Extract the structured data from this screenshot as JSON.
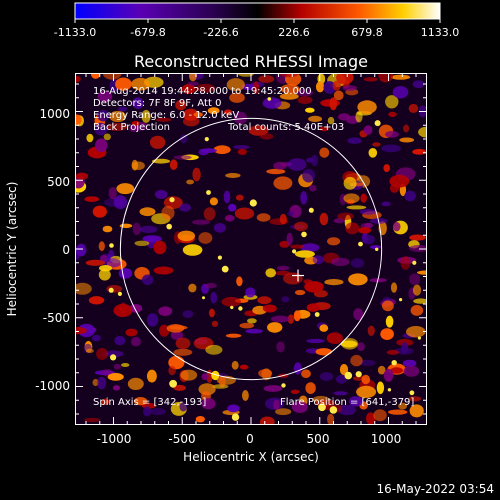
{
  "chart_data": {
    "type": "heatmap",
    "title": "Reconstructed RHESSI Image",
    "xlabel": "Heliocentric X (arcsec)",
    "ylabel": "Heliocentric Y (arcsec)",
    "xlim": [
      -1280,
      1280
    ],
    "ylim": [
      -1280,
      1280
    ],
    "x_ticks": [
      "-1000",
      "-500",
      "0",
      "500",
      "1000"
    ],
    "y_ticks": [
      "1000",
      "500",
      "0",
      "-500",
      "-1000"
    ],
    "colorbar": {
      "range": [
        -1133.0,
        1133.0
      ],
      "tick_labels": [
        "-1133.0",
        "-679.8",
        "-226.6",
        "226.6",
        "679.8",
        "1133.0"
      ],
      "colors": [
        "#0000ff",
        "#5a00b4",
        "#2a0050",
        "#000000",
        "#b40000",
        "#ff5a00",
        "#ffd000",
        "#ffffff"
      ]
    },
    "annotations": {
      "time": "16-Aug-2014 19:44:28.000 to 19:45:20.000",
      "detectors": "Detectors: 7F 8F 9F, Att 0",
      "energy": "Energy Range: 6.0 - 12.0 keV",
      "method": "Back Projection",
      "counts": "Total counts: 5.40E+03",
      "spin_axis": "Spin Axis = [342,-193]",
      "flare_position": "Flare Position = [641,-379]"
    },
    "solar_limb_radius": 950,
    "marker": [
      342,
      -193
    ],
    "grid": false
  },
  "footer": {
    "timestamp": "16-May-2022 03:54"
  },
  "colors": {
    "background": "#000000",
    "foreground": "#ffffff"
  }
}
